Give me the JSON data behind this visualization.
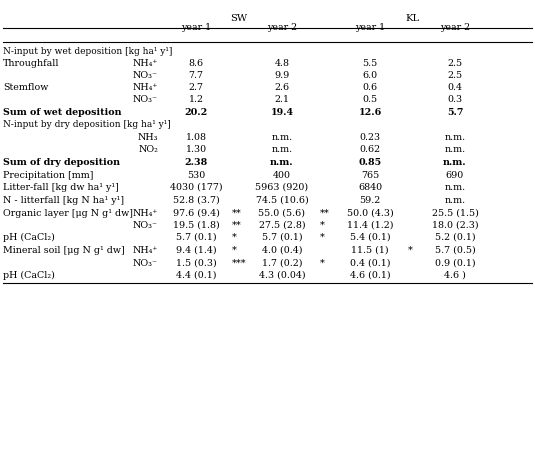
{
  "rows": [
    {
      "type": "section",
      "col0": "N-input by wet deposition [kg ha¹ y¹]"
    },
    {
      "type": "data",
      "col0": "Throughfall",
      "col1": "NH₄⁺",
      "c1": "8.6",
      "s1": "",
      "c2": "4.8",
      "s2": "",
      "c3": "5.5",
      "s3": "",
      "c4": "2.5"
    },
    {
      "type": "data",
      "col0": "",
      "col1": "NO₃⁻",
      "c1": "7.7",
      "s1": "",
      "c2": "9.9",
      "s2": "",
      "c3": "6.0",
      "s3": "",
      "c4": "2.5"
    },
    {
      "type": "data",
      "col0": "Stemflow",
      "col1": "NH₄⁺",
      "c1": "2.7",
      "s1": "",
      "c2": "2.6",
      "s2": "",
      "c3": "0.6",
      "s3": "",
      "c4": "0.4"
    },
    {
      "type": "data",
      "col0": "",
      "col1": "NO₃⁻",
      "c1": "1.2",
      "s1": "",
      "c2": "2.1",
      "s2": "",
      "c3": "0.5",
      "s3": "",
      "c4": "0.3"
    },
    {
      "type": "sum",
      "col0": "Sum of wet deposition",
      "col1": "",
      "c1": "20.2",
      "s1": "",
      "c2": "19.4",
      "s2": "",
      "c3": "12.6",
      "s3": "",
      "c4": "5.7"
    },
    {
      "type": "section",
      "col0": "N-input by dry deposition [kg ha¹ y¹]"
    },
    {
      "type": "data",
      "col0": "",
      "col1": "NH₃",
      "c1": "1.08",
      "s1": "",
      "c2": "n.m.",
      "s2": "",
      "c3": "0.23",
      "s3": "",
      "c4": "n.m."
    },
    {
      "type": "data",
      "col0": "",
      "col1": "NO₂",
      "c1": "1.30",
      "s1": "",
      "c2": "n.m.",
      "s2": "",
      "c3": "0.62",
      "s3": "",
      "c4": "n.m."
    },
    {
      "type": "sum",
      "col0": "Sum of dry deposition",
      "col1": "",
      "c1": "2.38",
      "s1": "",
      "c2": "n.m.",
      "s2": "",
      "c3": "0.85",
      "s3": "",
      "c4": "n.m."
    },
    {
      "type": "data",
      "col0": "Precipitation [mm]",
      "col1": "",
      "c1": "530",
      "s1": "",
      "c2": "400",
      "s2": "",
      "c3": "765",
      "s3": "",
      "c4": "690"
    },
    {
      "type": "data",
      "col0": "Litter-fall [kg dw ha¹ y¹]",
      "col1": "",
      "c1": "4030 (177)",
      "s1": "",
      "c2": "5963 (920)",
      "s2": "",
      "c3": "6840",
      "s3": "",
      "c4": "n.m."
    },
    {
      "type": "data",
      "col0": "N - litterfall [kg N ha¹ y¹]",
      "col1": "",
      "c1": "52.8 (3.7)",
      "s1": "",
      "c2": "74.5 (10.6)",
      "s2": "",
      "c3": "59.2",
      "s3": "",
      "c4": "n.m."
    },
    {
      "type": "data",
      "col0": "Organic layer [μg N g¹ dw]",
      "col1": "NH₄⁺",
      "c1": "97.6 (9.4)",
      "s1": "**",
      "c2": "55.0 (5.6)",
      "s2": "**",
      "c3": "50.0 (4.3)",
      "s3": "",
      "c4": "25.5 (1.5)"
    },
    {
      "type": "data",
      "col0": "",
      "col1": "NO₃⁻",
      "c1": "19.5 (1.8)",
      "s1": "**",
      "c2": "27.5 (2.8)",
      "s2": "*",
      "c3": "11.4 (1.2)",
      "s3": "",
      "c4": "18.0 (2.3)"
    },
    {
      "type": "data",
      "col0": "pH (CaCl₂)",
      "col1": "",
      "c1": "5.7 (0.1)",
      "s1": "*",
      "c2": "5.7 (0.1)",
      "s2": "*",
      "c3": "5.4 (0.1)",
      "s3": "",
      "c4": "5.2 (0.1)"
    },
    {
      "type": "data",
      "col0": "Mineral soil [μg N g¹ dw]",
      "col1": "NH₄⁺",
      "c1": "9.4 (1.4)",
      "s1": "*",
      "c2": "4.0 (0.4)",
      "s2": "",
      "c3": "11.5 (1)",
      "s3": "*",
      "c4": "5.7 (0.5)"
    },
    {
      "type": "data",
      "col0": "",
      "col1": "NO₃⁻",
      "c1": "1.5 (0.3)",
      "s1": "***",
      "c2": "1.7 (0.2)",
      "s2": "*",
      "c3": "0.4 (0.1)",
      "s3": "",
      "c4": "0.9 (0.1)"
    },
    {
      "type": "data",
      "col0": "pH (CaCl₂)",
      "col1": "",
      "c1": "4.4 (0.1)",
      "s1": "",
      "c2": "4.3 (0.04)",
      "s2": "",
      "c3": "4.6 (0.1)",
      "s3": "",
      "c4": "4.6 )"
    }
  ],
  "bg_color": "#ffffff",
  "text_color": "#000000",
  "fontsize": 6.8,
  "section_fontsize": 6.5,
  "header_fontsize": 7.2
}
